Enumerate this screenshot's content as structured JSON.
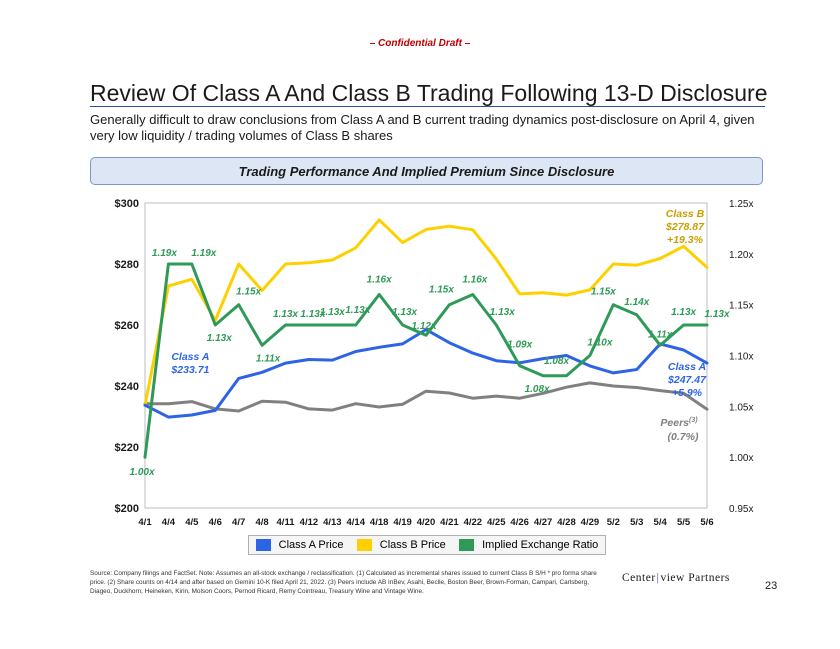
{
  "header": {
    "confidential": "– Confidential Draft –",
    "title": "Review Of Class A And Class B Trading Following 13-D Disclosure",
    "subtitle": "Generally difficult to draw conclusions from Class A and B current trading dynamics post-disclosure on April 4, given very low liquidity / trading volumes of Class B shares"
  },
  "banner": {
    "text": "Trading Performance And Implied Premium Since Disclosure"
  },
  "chart_data": {
    "type": "line",
    "categories": [
      "4/1",
      "4/4",
      "4/5",
      "4/6",
      "4/7",
      "4/8",
      "4/11",
      "4/12",
      "4/13",
      "4/14",
      "4/18",
      "4/19",
      "4/20",
      "4/21",
      "4/22",
      "4/25",
      "4/26",
      "4/27",
      "4/28",
      "4/29",
      "5/2",
      "5/3",
      "5/4",
      "5/5",
      "5/6"
    ],
    "y_left": {
      "min": 200,
      "max": 300,
      "ticks": [
        "$200",
        "$220",
        "$240",
        "$260",
        "$280",
        "$300"
      ]
    },
    "y_right": {
      "min": 0.95,
      "max": 1.25,
      "ticks": [
        "0.95x",
        "1.00x",
        "1.05x",
        "1.10x",
        "1.15x",
        "1.20x",
        "1.25x"
      ]
    },
    "series": [
      {
        "name": "Class A Price",
        "axis": "left",
        "color": "#2d64e6",
        "values": [
          233.7,
          229.8,
          230.5,
          232.0,
          242.5,
          244.5,
          247.5,
          248.7,
          248.5,
          251.3,
          252.7,
          253.8,
          258.5,
          254.2,
          250.8,
          248.3,
          247.6,
          249.0,
          250.0,
          246.6,
          244.3,
          245.4,
          253.8,
          251.8,
          247.5
        ]
      },
      {
        "name": "Class B Price",
        "axis": "right_value_left",
        "color": "#ffd000",
        "values": [
          233.7,
          272.8,
          275.0,
          261.5,
          280.0,
          271.3,
          280.0,
          280.4,
          281.3,
          285.3,
          294.5,
          287.0,
          291.3,
          292.4,
          291.2,
          281.6,
          270.2,
          270.6,
          269.8,
          271.5,
          280.0,
          279.6,
          281.8,
          285.8,
          278.9
        ]
      },
      {
        "name": "Implied Exchange Ratio",
        "axis": "right",
        "color": "#2f9a58",
        "values": [
          1.0,
          1.19,
          1.19,
          1.13,
          1.15,
          1.11,
          1.13,
          1.13,
          1.13,
          1.13,
          1.16,
          1.13,
          1.12,
          1.15,
          1.16,
          1.13,
          1.09,
          1.08,
          1.08,
          1.1,
          1.15,
          1.14,
          1.11,
          1.13,
          1.13
        ]
      },
      {
        "name": "Peers",
        "axis": "left",
        "color": "#808080",
        "values": [
          234.2,
          234.2,
          234.9,
          232.5,
          231.8,
          235.0,
          234.7,
          232.5,
          232.1,
          234.2,
          233.1,
          234.0,
          238.3,
          237.7,
          236.0,
          236.7,
          236.0,
          237.6,
          239.6,
          241.0,
          240.0,
          239.5,
          238.5,
          237.6,
          232.4
        ]
      }
    ],
    "ratio_labels": [
      "1.00x",
      "1.19x",
      "1.19x",
      "1.13x",
      "1.15x",
      "1.11x",
      "1.13x",
      "1.13x",
      "1.13x",
      "1.13x",
      "1.16x",
      "1.13x",
      "1.12x",
      "1.15x",
      "1.16x",
      "1.13x",
      "1.09x",
      "1.08x",
      "1.08x",
      "1.10x",
      "1.15x",
      "1.14x",
      "1.11x",
      "1.13x",
      "1.13x"
    ],
    "annotations": {
      "class_a_start": [
        "Class A",
        "$233.71"
      ],
      "class_a_end": [
        "Class A",
        "$247.47",
        "+5.9%"
      ],
      "class_b_end": [
        "Class B",
        "$278.87",
        "+19.3%"
      ],
      "peers_end": [
        "Peers",
        "(3)",
        "(0.7%)"
      ]
    },
    "legend": [
      "Class A Price",
      "Class B Price",
      "Implied Exchange Ratio"
    ]
  },
  "legend": {
    "items": [
      {
        "label": "Class A Price",
        "color": "#2d64e6"
      },
      {
        "label": "Class B Price",
        "color": "#ffd000"
      },
      {
        "label": "Implied Exchange Ratio",
        "color": "#2f9a58"
      }
    ]
  },
  "footer": {
    "source": "Source: Company filings and FactSet. Note: Assumes an all-stock exchange / reclassification. (1) Calculated as incremental shares issued to current Class B S/H * pro forma share price. (2) Share counts on 4/14 and after based on Gemini 10-K filed April 21, 2022. (3) Peers include AB InBev, Asahi, Beclle, Boston Beer, Brown-Forman, Campari, Carlsberg, Diageo, Duckhorn, Heineken, Kirin, Molson Coors, Pernod Ricard, Remy Cointreau, Treasury Wine and Vintage Wine.",
    "logo_left": "Center",
    "logo_sep": "|",
    "logo_right": "view Partners",
    "page_number": "23"
  }
}
